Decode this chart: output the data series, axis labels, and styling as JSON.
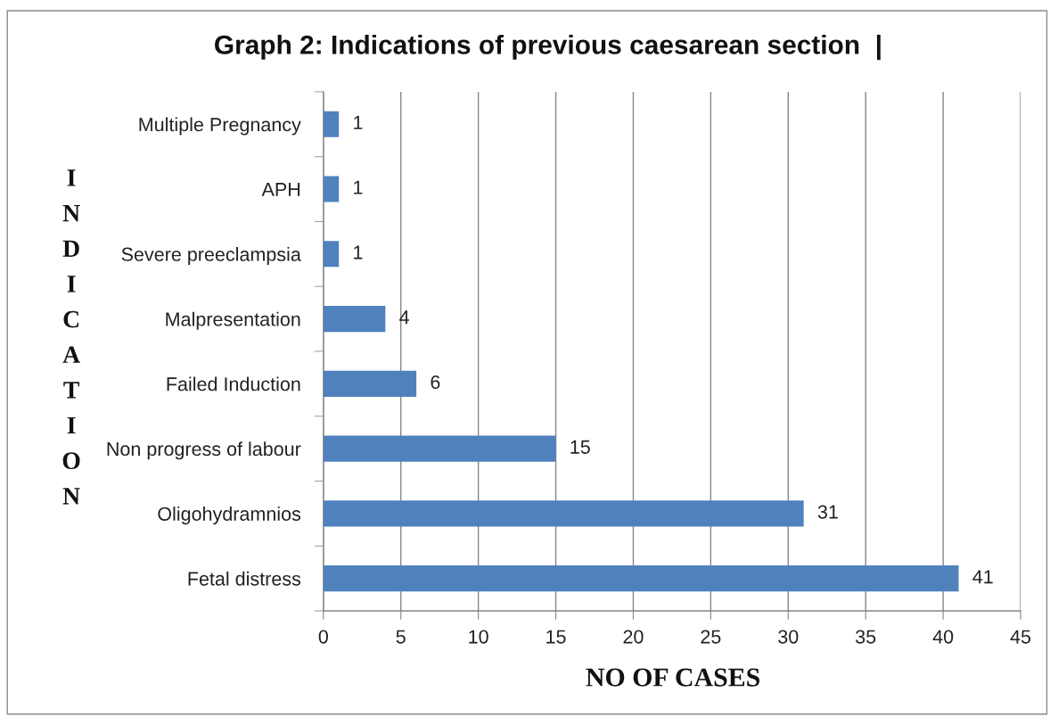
{
  "chart_data": {
    "type": "bar",
    "orientation": "horizontal",
    "title": "Graph 2: Indications of previous caesarean section  |",
    "xlabel": "NO OF CASES",
    "ylabel": "INDICATION",
    "categories": [
      "Multiple Pregnancy",
      "APH",
      "Severe preeclampsia",
      "Malpresentation",
      "Failed Induction",
      "Non progress of labour",
      "Oligohydramnios",
      "Fetal distress"
    ],
    "values": [
      1,
      1,
      1,
      4,
      6,
      15,
      31,
      41
    ],
    "color": "#4f81bd",
    "xlim": [
      0,
      45
    ],
    "xticks": [
      0,
      5,
      10,
      15,
      20,
      25,
      30,
      35,
      40,
      45
    ],
    "grid": "x",
    "data_labels": true
  }
}
